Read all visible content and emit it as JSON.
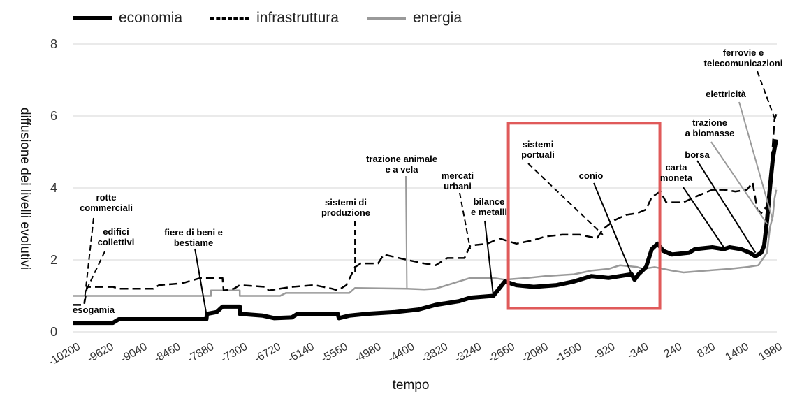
{
  "chart_data": {
    "type": "line",
    "xlabel": "tempo",
    "ylabel": "diffusione dei livelli evolutivi",
    "xlim": [
      -10200,
      2020
    ],
    "ylim": [
      0,
      8
    ],
    "xticks": [
      "-10200",
      "-9620",
      "-9040",
      "-8460",
      "-7880",
      "-7300",
      "-6720",
      "-6140",
      "-5560",
      "-4980",
      "-4400",
      "-3820",
      "-3240",
      "-2660",
      "-2080",
      "-1500",
      "-920",
      "-340",
      "240",
      "820",
      "1400",
      "1980"
    ],
    "yticks": [
      0,
      2,
      4,
      6,
      8
    ],
    "grid": true,
    "legend": "top",
    "series": [
      {
        "name": "economia",
        "color": "#000000",
        "style": "solid-thick",
        "points": [
          [
            -10200,
            0.25
          ],
          [
            -9500,
            0.25
          ],
          [
            -9400,
            0.35
          ],
          [
            -8000,
            0.35
          ],
          [
            -7880,
            0.35
          ],
          [
            -7870,
            0.5
          ],
          [
            -7700,
            0.55
          ],
          [
            -7600,
            0.7
          ],
          [
            -7300,
            0.7
          ],
          [
            -7300,
            0.5
          ],
          [
            -6900,
            0.45
          ],
          [
            -6700,
            0.38
          ],
          [
            -6400,
            0.4
          ],
          [
            -6300,
            0.5
          ],
          [
            -5600,
            0.5
          ],
          [
            -5580,
            0.38
          ],
          [
            -5400,
            0.45
          ],
          [
            -5100,
            0.5
          ],
          [
            -4600,
            0.55
          ],
          [
            -4200,
            0.62
          ],
          [
            -3900,
            0.75
          ],
          [
            -3500,
            0.85
          ],
          [
            -3300,
            0.95
          ],
          [
            -2900,
            1.0
          ],
          [
            -2800,
            1.2
          ],
          [
            -2700,
            1.4
          ],
          [
            -2500,
            1.3
          ],
          [
            -2200,
            1.25
          ],
          [
            -1800,
            1.3
          ],
          [
            -1500,
            1.4
          ],
          [
            -1200,
            1.55
          ],
          [
            -900,
            1.5
          ],
          [
            -700,
            1.55
          ],
          [
            -500,
            1.6
          ],
          [
            -450,
            1.45
          ],
          [
            -380,
            1.6
          ],
          [
            -250,
            1.8
          ],
          [
            -150,
            2.3
          ],
          [
            -50,
            2.45
          ],
          [
            50,
            2.25
          ],
          [
            200,
            2.15
          ],
          [
            500,
            2.2
          ],
          [
            600,
            2.3
          ],
          [
            900,
            2.35
          ],
          [
            1100,
            2.3
          ],
          [
            1200,
            2.35
          ],
          [
            1400,
            2.3
          ],
          [
            1550,
            2.2
          ],
          [
            1650,
            2.1
          ],
          [
            1750,
            2.2
          ],
          [
            1800,
            2.4
          ],
          [
            1850,
            3.1
          ],
          [
            1900,
            4.0
          ],
          [
            1950,
            4.8
          ],
          [
            1980,
            5.1
          ],
          [
            2010,
            5.35
          ]
        ]
      },
      {
        "name": "infrastruttura",
        "color": "#000000",
        "style": "dashed",
        "points": [
          [
            -10200,
            0.75
          ],
          [
            -10000,
            0.75
          ],
          [
            -9950,
            1.25
          ],
          [
            -9500,
            1.25
          ],
          [
            -9400,
            1.2
          ],
          [
            -8800,
            1.2
          ],
          [
            -8700,
            1.3
          ],
          [
            -8300,
            1.35
          ],
          [
            -7980,
            1.5
          ],
          [
            -7600,
            1.5
          ],
          [
            -7580,
            1.15
          ],
          [
            -7400,
            1.2
          ],
          [
            -7300,
            1.3
          ],
          [
            -6850,
            1.25
          ],
          [
            -6800,
            1.15
          ],
          [
            -6400,
            1.25
          ],
          [
            -6000,
            1.3
          ],
          [
            -5700,
            1.2
          ],
          [
            -5600,
            1.15
          ],
          [
            -5450,
            1.3
          ],
          [
            -5300,
            1.8
          ],
          [
            -5200,
            1.9
          ],
          [
            -4900,
            1.9
          ],
          [
            -4800,
            2.15
          ],
          [
            -4400,
            2.0
          ],
          [
            -4100,
            1.9
          ],
          [
            -3900,
            1.85
          ],
          [
            -3700,
            2.05
          ],
          [
            -3400,
            2.05
          ],
          [
            -3300,
            2.4
          ],
          [
            -3000,
            2.45
          ],
          [
            -2800,
            2.6
          ],
          [
            -2500,
            2.45
          ],
          [
            -2200,
            2.55
          ],
          [
            -2000,
            2.65
          ],
          [
            -1700,
            2.7
          ],
          [
            -1400,
            2.7
          ],
          [
            -1100,
            2.6
          ],
          [
            -1000,
            2.85
          ],
          [
            -800,
            3.1
          ],
          [
            -600,
            3.25
          ],
          [
            -400,
            3.3
          ],
          [
            -250,
            3.4
          ],
          [
            -150,
            3.75
          ],
          [
            0,
            3.9
          ],
          [
            100,
            3.6
          ],
          [
            400,
            3.6
          ],
          [
            600,
            3.75
          ],
          [
            900,
            3.95
          ],
          [
            1100,
            3.95
          ],
          [
            1300,
            3.9
          ],
          [
            1500,
            3.95
          ],
          [
            1600,
            4.15
          ],
          [
            1680,
            3.4
          ],
          [
            1750,
            3.3
          ],
          [
            1850,
            3.5
          ],
          [
            1900,
            4.2
          ],
          [
            1950,
            5.2
          ],
          [
            1980,
            5.9
          ],
          [
            2010,
            6.05
          ]
        ]
      },
      {
        "name": "energia",
        "color": "#9a9a9a",
        "style": "solid",
        "points": [
          [
            -10200,
            1.0
          ],
          [
            -7800,
            1.0
          ],
          [
            -7800,
            1.15
          ],
          [
            -7300,
            1.15
          ],
          [
            -7300,
            1.0
          ],
          [
            -6600,
            1.0
          ],
          [
            -6500,
            1.08
          ],
          [
            -5400,
            1.08
          ],
          [
            -5300,
            1.22
          ],
          [
            -4400,
            1.2
          ],
          [
            -4100,
            1.18
          ],
          [
            -3900,
            1.2
          ],
          [
            -3300,
            1.5
          ],
          [
            -2900,
            1.5
          ],
          [
            -2700,
            1.45
          ],
          [
            -2300,
            1.5
          ],
          [
            -2000,
            1.55
          ],
          [
            -1500,
            1.6
          ],
          [
            -1200,
            1.7
          ],
          [
            -900,
            1.75
          ],
          [
            -700,
            1.85
          ],
          [
            -400,
            1.8
          ],
          [
            -300,
            1.75
          ],
          [
            -100,
            1.8
          ],
          [
            200,
            1.7
          ],
          [
            400,
            1.65
          ],
          [
            800,
            1.7
          ],
          [
            1200,
            1.75
          ],
          [
            1500,
            1.8
          ],
          [
            1700,
            1.85
          ],
          [
            1850,
            2.2
          ],
          [
            1900,
            2.9
          ],
          [
            1950,
            3.2
          ],
          [
            1980,
            3.7
          ],
          [
            2010,
            3.95
          ]
        ]
      }
    ],
    "annotations": [
      {
        "text": "esogamia",
        "x": -10200,
        "y": 0.75,
        "line": "none"
      },
      {
        "text": "rotte commerciali",
        "x": -10000,
        "y": 0.8,
        "line": "dashed"
      },
      {
        "text": "edifici collettivi",
        "x": -9950,
        "y": 1.2,
        "line": "dashed"
      },
      {
        "text": "fiere di beni e bestiame",
        "x": -7880,
        "y": 0.5,
        "line": "solid"
      },
      {
        "text": "sistemi di produzione",
        "x": -5300,
        "y": 1.6,
        "line": "dashed"
      },
      {
        "text": "trazione animale e a vela",
        "x": -4400,
        "y": 1.2,
        "line": "solid-grey"
      },
      {
        "text": "mercati urbani",
        "x": -3300,
        "y": 2.3,
        "line": "dashed"
      },
      {
        "text": "bilance e metalli",
        "x": -2900,
        "y": 1.0,
        "line": "solid"
      },
      {
        "text": "sistemi portuali",
        "x": -1000,
        "y": 2.7,
        "line": "dashed"
      },
      {
        "text": "conio",
        "x": -500,
        "y": 1.6,
        "line": "solid"
      },
      {
        "text": "carta moneta",
        "x": 1100,
        "y": 2.35,
        "line": "solid"
      },
      {
        "text": "borsa",
        "x": 1650,
        "y": 2.2,
        "line": "solid"
      },
      {
        "text": "trazione a biomasse",
        "x": 1850,
        "y": 3.0,
        "line": "solid-grey"
      },
      {
        "text": "elettricità",
        "x": 1950,
        "y": 3.1,
        "line": "solid-grey"
      },
      {
        "text": "ferrovie e telecomunicazioni",
        "x": 1990,
        "y": 5.9,
        "line": "dashed"
      }
    ],
    "highlight_box": {
      "x_from": -2640,
      "x_to": -10,
      "y_from": 0.65,
      "y_to": 5.8,
      "color": "#e05a5a"
    }
  }
}
